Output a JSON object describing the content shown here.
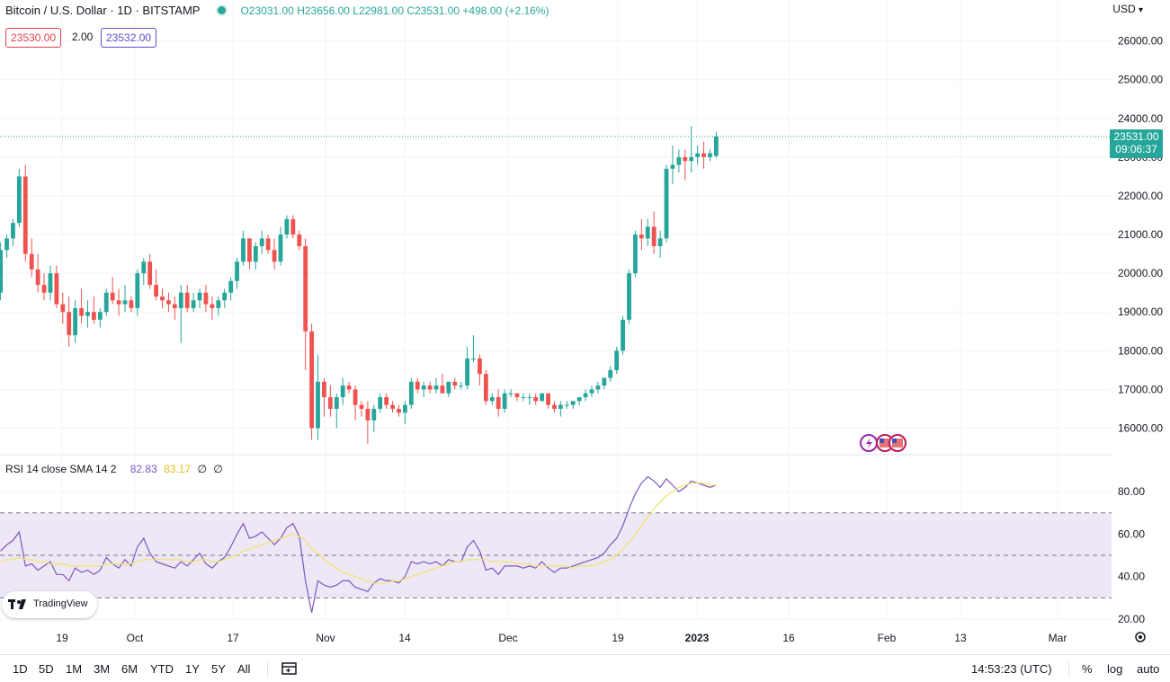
{
  "header": {
    "symbol": "Bitcoin / U.S. Dollar · 1D · BITSTAMP",
    "open": "O23031.00",
    "high": "H23656.00",
    "low": "L22981.00",
    "close": "C23531.00",
    "change": "+498.00 (+2.16%)",
    "bid": "23530.00",
    "spread": "2.00",
    "ask": "23532.00",
    "currency": "USD",
    "currency_chevron": "chevron-down-icon"
  },
  "last_price": {
    "value": "23531.00",
    "countdown": "09:06:37"
  },
  "rsi_legend": {
    "label": "RSI 14 close SMA 14 2",
    "rsi": "82.83",
    "sma": "83.17",
    "extra1": "∅",
    "extra2": "∅"
  },
  "bottom_bar": {
    "ranges": [
      "1D",
      "5D",
      "1M",
      "3M",
      "6M",
      "YTD",
      "1Y",
      "5Y",
      "All"
    ],
    "time": "14:53:23 (UTC)",
    "percent": "%",
    "log": "log",
    "auto": "auto"
  },
  "logo_text": "TradingView",
  "colors": {
    "up": "#26a69a",
    "down": "#ef5350",
    "rsi": "#7e57c2",
    "sma": "#f4e36b",
    "band": "#ede7f6"
  },
  "chart_data": [
    {
      "type": "candlestick",
      "title": "Bitcoin / U.S. Dollar · 1D · BITSTAMP",
      "ylim": [
        15500,
        26300
      ],
      "yticks": [
        "16000.00",
        "17000.00",
        "18000.00",
        "19000.00",
        "20000.00",
        "21000.00",
        "22000.00",
        "23000.00",
        "24000.00",
        "25000.00",
        "26000.00"
      ],
      "xticks": [
        "19",
        "Oct",
        "17",
        "Nov",
        "14",
        "Dec",
        "19",
        "2023",
        "16",
        "Feb",
        "13",
        "Mar"
      ],
      "series": [
        {
          "values": [
            [
              19500,
              20800,
              19300,
              20600
            ],
            [
              20600,
              21000,
              20400,
              20900
            ],
            [
              20900,
              21400,
              20700,
              21300
            ],
            [
              21300,
              22700,
              21200,
              22500
            ],
            [
              22500,
              22800,
              20300,
              20500
            ],
            [
              20500,
              20900,
              19900,
              20100
            ],
            [
              20100,
              20500,
              19500,
              19700
            ],
            [
              19700,
              20000,
              19300,
              19500
            ],
            [
              19500,
              20200,
              19300,
              20000
            ],
            [
              20000,
              20200,
              19100,
              19200
            ],
            [
              19200,
              19500,
              18700,
              19000
            ],
            [
              19000,
              19400,
              18100,
              18400
            ],
            [
              18400,
              19300,
              18200,
              19100
            ],
            [
              19100,
              19600,
              18700,
              18900
            ],
            [
              18900,
              19300,
              18600,
              19000
            ],
            [
              19000,
              19400,
              18700,
              18800
            ],
            [
              18800,
              19100,
              18600,
              19000
            ],
            [
              19000,
              19600,
              18900,
              19500
            ],
            [
              19500,
              19900,
              19200,
              19300
            ],
            [
              19300,
              19600,
              18900,
              19200
            ],
            [
              19200,
              19700,
              19000,
              19300
            ],
            [
              19300,
              19400,
              19000,
              19100
            ],
            [
              19100,
              20100,
              18900,
              20000
            ],
            [
              20000,
              20400,
              19700,
              20300
            ],
            [
              20300,
              20500,
              19600,
              19700
            ],
            [
              19700,
              20100,
              19300,
              19400
            ],
            [
              19400,
              19600,
              19100,
              19300
            ],
            [
              19300,
              19500,
              19000,
              19200
            ],
            [
              19200,
              19400,
              18800,
              19100
            ],
            [
              19100,
              19700,
              18200,
              19500
            ],
            [
              19500,
              19700,
              19000,
              19100
            ],
            [
              19100,
              19500,
              19000,
              19300
            ],
            [
              19300,
              19600,
              19100,
              19500
            ],
            [
              19500,
              19700,
              19000,
              19200
            ],
            [
              19200,
              19400,
              18800,
              19100
            ],
            [
              19100,
              19400,
              18900,
              19300
            ],
            [
              19300,
              19600,
              19100,
              19500
            ],
            [
              19500,
              19900,
              19300,
              19800
            ],
            [
              19800,
              20400,
              19600,
              20300
            ],
            [
              20300,
              21100,
              20200,
              20900
            ],
            [
              20900,
              20900,
              20100,
              20300
            ],
            [
              20300,
              20800,
              20100,
              20700
            ],
            [
              20700,
              21100,
              20500,
              20900
            ],
            [
              20900,
              21000,
              20500,
              20600
            ],
            [
              20600,
              20900,
              20100,
              20300
            ],
            [
              20300,
              21200,
              20200,
              21000
            ],
            [
              21000,
              21500,
              20900,
              21400
            ],
            [
              21400,
              21500,
              20900,
              21000
            ],
            [
              21000,
              21100,
              20600,
              20700
            ],
            [
              20700,
              20900,
              17500,
              18500
            ],
            [
              18500,
              18700,
              15700,
              16000
            ],
            [
              16000,
              17900,
              15700,
              17200
            ],
            [
              17200,
              17300,
              16300,
              16800
            ],
            [
              16800,
              17100,
              16300,
              16500
            ],
            [
              16500,
              16900,
              16000,
              16800
            ],
            [
              16800,
              17300,
              16600,
              17100
            ],
            [
              17100,
              17200,
              16900,
              17000
            ],
            [
              17000,
              17100,
              16200,
              16600
            ],
            [
              16600,
              16700,
              16300,
              16500
            ],
            [
              16500,
              16700,
              15600,
              16200
            ],
            [
              16200,
              16600,
              15900,
              16500
            ],
            [
              16500,
              16900,
              16400,
              16800
            ],
            [
              16800,
              16900,
              16500,
              16600
            ],
            [
              16600,
              16700,
              16400,
              16500
            ],
            [
              16500,
              16600,
              16300,
              16400
            ],
            [
              16400,
              16700,
              16100,
              16600
            ],
            [
              16600,
              17300,
              16500,
              17200
            ],
            [
              17200,
              17300,
              16900,
              17000
            ],
            [
              17000,
              17200,
              16800,
              17100
            ],
            [
              17100,
              17200,
              16900,
              17000
            ],
            [
              17000,
              17300,
              16900,
              17100
            ],
            [
              17100,
              17400,
              16900,
              16900
            ],
            [
              16900,
              17200,
              16800,
              17200
            ],
            [
              17200,
              17300,
              17000,
              17100
            ],
            [
              17100,
              17200,
              17000,
              17100
            ],
            [
              17100,
              18100,
              17000,
              17800
            ],
            [
              17800,
              18400,
              17700,
              17800
            ],
            [
              17800,
              17900,
              17100,
              17400
            ],
            [
              17400,
              17500,
              16600,
              16700
            ],
            [
              16700,
              16900,
              16600,
              16800
            ],
            [
              16800,
              17000,
              16300,
              16500
            ],
            [
              16500,
              17000,
              16400,
              16900
            ],
            [
              16900,
              17000,
              16800,
              16900
            ],
            [
              16900,
              16900,
              16700,
              16800
            ],
            [
              16800,
              16900,
              16700,
              16800
            ],
            [
              16800,
              16900,
              16600,
              16800
            ],
            [
              16800,
              16900,
              16600,
              16700
            ],
            [
              16700,
              16900,
              16700,
              16900
            ],
            [
              16900,
              16900,
              16500,
              16600
            ],
            [
              16600,
              16700,
              16400,
              16500
            ],
            [
              16500,
              16700,
              16300,
              16600
            ],
            [
              16600,
              16700,
              16500,
              16600
            ],
            [
              16600,
              16700,
              16500,
              16700
            ],
            [
              16700,
              16800,
              16600,
              16800
            ],
            [
              16800,
              17000,
              16700,
              16900
            ],
            [
              16900,
              17100,
              16800,
              17000
            ],
            [
              17000,
              17200,
              16900,
              17100
            ],
            [
              17100,
              17300,
              17000,
              17300
            ],
            [
              17300,
              17600,
              17200,
              17500
            ],
            [
              17500,
              18100,
              17400,
              18000
            ],
            [
              18000,
              18900,
              17900,
              18800
            ],
            [
              18800,
              20100,
              18700,
              20000
            ],
            [
              20000,
              21100,
              19900,
              21000
            ],
            [
              21000,
              21400,
              20600,
              20900
            ],
            [
              20900,
              21400,
              20700,
              21200
            ],
            [
              21200,
              21600,
              20500,
              20700
            ],
            [
              20700,
              21100,
              20400,
              20900
            ],
            [
              20900,
              22800,
              20800,
              22700
            ],
            [
              22700,
              23300,
              22300,
              22800
            ],
            [
              22800,
              23200,
              22600,
              23000
            ],
            [
              23000,
              23200,
              22400,
              22900
            ],
            [
              22900,
              23800,
              22600,
              23000
            ],
            [
              23000,
              23300,
              22800,
              23100
            ],
            [
              23100,
              23400,
              22700,
              23000
            ],
            [
              23000,
              23200,
              22900,
              23100
            ],
            [
              23031,
              23656,
              22981,
              23531
            ]
          ]
        }
      ]
    },
    {
      "type": "line",
      "title": "RSI 14 close SMA 14 2",
      "ylim": [
        18,
        92
      ],
      "yticks": [
        "20.00",
        "40.00",
        "60.00",
        "80.00"
      ],
      "bands": [
        30,
        50,
        70
      ],
      "series": [
        {
          "name": "RSI",
          "values": [
            52,
            55,
            57,
            61,
            45,
            46,
            43,
            45,
            47,
            41,
            41,
            38,
            44,
            42,
            43,
            41,
            43,
            49,
            46,
            44,
            48,
            45,
            54,
            58,
            51,
            47,
            46,
            45,
            44,
            47,
            45,
            48,
            51,
            46,
            44,
            47,
            49,
            54,
            60,
            65,
            58,
            59,
            61,
            58,
            55,
            58,
            63,
            65,
            59,
            38,
            23,
            38,
            36,
            35,
            36,
            38,
            38,
            35,
            34,
            33,
            37,
            39,
            38,
            38,
            37,
            40,
            47,
            46,
            47,
            46,
            47,
            45,
            48,
            47,
            47,
            54,
            57,
            52,
            43,
            44,
            41,
            45,
            45,
            45,
            44,
            45,
            44,
            47,
            44,
            42,
            44,
            44,
            45,
            46,
            47,
            48,
            49,
            51,
            55,
            58,
            64,
            72,
            79,
            84,
            87,
            85,
            82,
            86,
            83,
            80,
            82,
            85,
            84,
            83,
            82,
            83
          ]
        },
        {
          "name": "SMA",
          "values": [
            47,
            48,
            48,
            49,
            48,
            48,
            47,
            47,
            46,
            46,
            46,
            45,
            45,
            45,
            45,
            45,
            45,
            46,
            46,
            46,
            46,
            46,
            47,
            48,
            48,
            48,
            48,
            48,
            48,
            48,
            47,
            47,
            48,
            48,
            47,
            47,
            48,
            49,
            50,
            52,
            53,
            54,
            55,
            56,
            57,
            58,
            59,
            60,
            59,
            57,
            53,
            51,
            48,
            46,
            44,
            42,
            41,
            40,
            39,
            38,
            37,
            37,
            37,
            38,
            38,
            39,
            40,
            41,
            42,
            43,
            44,
            45,
            46,
            47,
            47,
            48,
            48,
            48,
            48,
            47,
            47,
            47,
            47,
            46,
            46,
            46,
            45,
            45,
            45,
            45,
            45,
            45,
            44,
            45,
            45,
            45,
            46,
            47,
            48,
            50,
            53,
            56,
            60,
            64,
            68,
            72,
            75,
            78,
            80,
            82,
            83,
            84,
            84,
            84,
            83,
            83
          ]
        }
      ]
    }
  ]
}
